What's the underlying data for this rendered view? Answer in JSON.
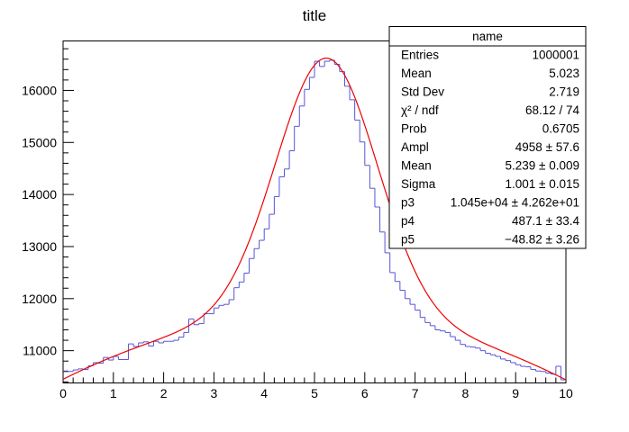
{
  "chart_data": {
    "type": "line",
    "title": "title",
    "xlabel": "",
    "ylabel": "",
    "xlim": [
      0,
      10
    ],
    "ylim": [
      10380,
      16950
    ],
    "x_major_ticks": [
      0,
      1,
      2,
      3,
      4,
      5,
      6,
      7,
      8,
      9,
      10
    ],
    "x_tick_labels": [
      "0",
      "1",
      "2",
      "3",
      "4",
      "5",
      "6",
      "7",
      "8",
      "9",
      "10"
    ],
    "y_major_ticks": [
      11000,
      12000,
      13000,
      14000,
      15000,
      16000
    ],
    "y_tick_labels": [
      "11000",
      "12000",
      "13000",
      "14000",
      "15000",
      "16000"
    ],
    "grid": false,
    "histogram": {
      "name": "name",
      "color": "#5555d8",
      "bin_edges_start": 0,
      "bin_width": 0.1,
      "values": [
        10610,
        10600,
        10630,
        10650,
        10640,
        10710,
        10770,
        10760,
        10870,
        10820,
        10890,
        10830,
        10830,
        11130,
        11080,
        11150,
        11170,
        11090,
        11180,
        11150,
        11180,
        11180,
        11200,
        11260,
        11350,
        11610,
        11500,
        11520,
        11710,
        11710,
        11820,
        11870,
        11890,
        11980,
        12210,
        12320,
        12490,
        12770,
        12960,
        13120,
        13340,
        13620,
        13960,
        14340,
        14490,
        14840,
        15310,
        15700,
        16020,
        16250,
        16560,
        16460,
        16560,
        16580,
        16500,
        16360,
        16080,
        15820,
        15430,
        15010,
        14560,
        14120,
        13760,
        13280,
        12880,
        12500,
        12330,
        12160,
        12000,
        11890,
        11780,
        11640,
        11540,
        11480,
        11400,
        11380,
        11350,
        11270,
        11200,
        11120,
        11080,
        11070,
        11050,
        11000,
        10950,
        10920,
        10890,
        10840,
        10810,
        10770,
        10730,
        10700,
        10690,
        10640,
        10610,
        10600,
        10570,
        10550,
        10700,
        10440
      ]
    },
    "fit": {
      "color": "#ee0000",
      "function": "gaus(0)+pol2(3)",
      "params": {
        "Ampl": 4958,
        "Mean": 5.239,
        "Sigma": 1.001,
        "p3": 10450,
        "p4": 487.1,
        "p5": -48.82
      }
    },
    "stats_box": {
      "position": "top-right",
      "title": "name",
      "rows": [
        {
          "label": "Entries",
          "value": "1000001"
        },
        {
          "label": "Mean",
          "value": "5.023"
        },
        {
          "label": "Std Dev",
          "value": "2.719"
        },
        {
          "label": "χ² / ndf",
          "value": "68.12 / 74"
        },
        {
          "label": "Prob",
          "value": "0.6705"
        },
        {
          "label": "Ampl",
          "value": "4958 ± 57.6"
        },
        {
          "label": "Mean",
          "value": "5.239 ± 0.009"
        },
        {
          "label": "Sigma",
          "value": "1.001 ± 0.015"
        },
        {
          "label": "p3",
          "value": "1.045e+04 ± 4.262e+01"
        },
        {
          "label": "p4",
          "value": "487.1 ± 33.4"
        },
        {
          "label": "p5",
          "value": "−48.82 ± 3.26"
        }
      ]
    }
  }
}
